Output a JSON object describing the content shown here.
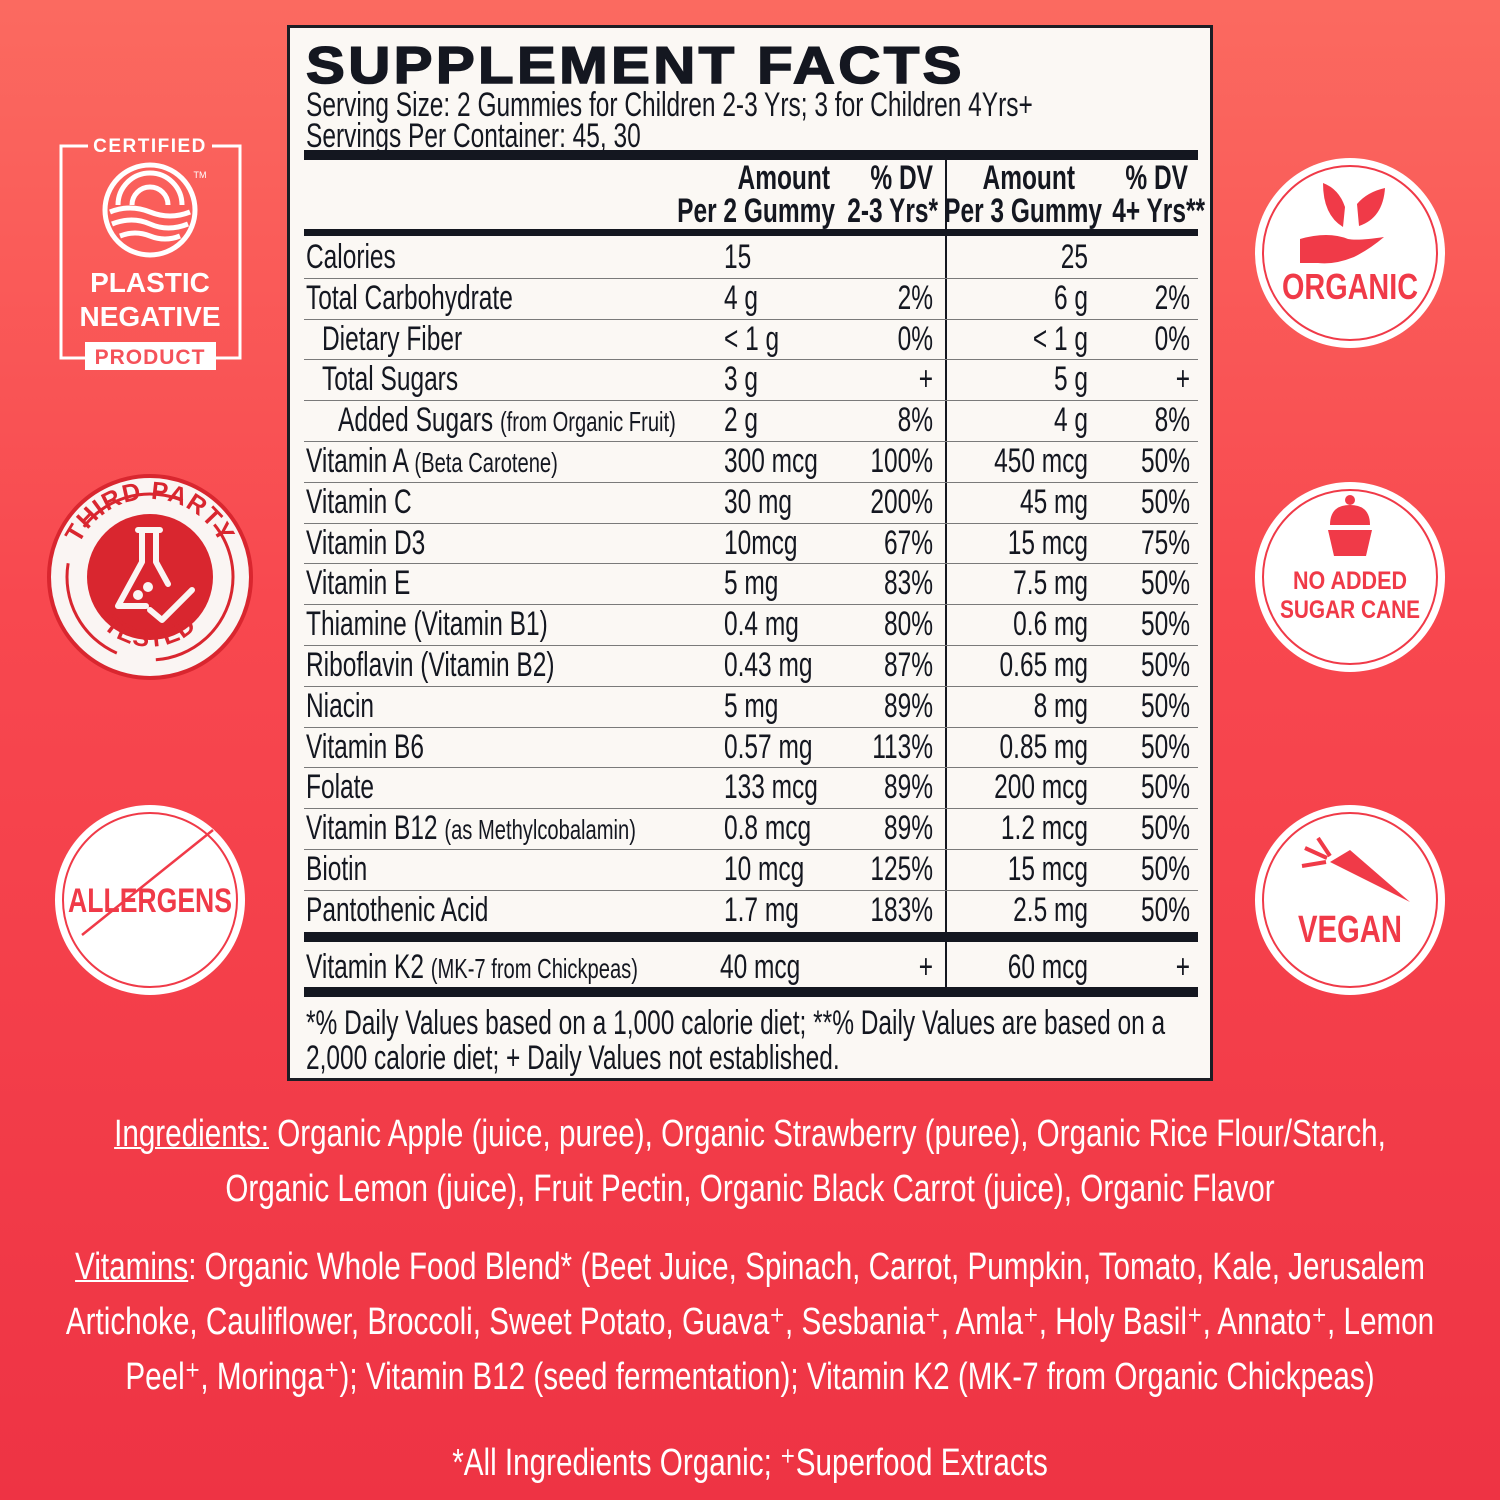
{
  "colors": {
    "accent": "#f03a48",
    "ink": "#141720",
    "panel": "#fbf8f4",
    "white": "#ffffff"
  },
  "facts": {
    "title": "SUPPLEMENT FACTS",
    "serving_size": "Serving Size: 2 Gummies for Children 2-3 Yrs; 3 for Children 4Yrs+",
    "servings_per_container": "Servings Per Container: 45, 30",
    "headers": {
      "amount1_l1": "Amount",
      "amount1_l2": "Per 2 Gummy",
      "dv1_l1": "% DV",
      "dv1_l2": "2-3 Yrs*",
      "amount2_l1": "Amount",
      "amount2_l2": "Per 3 Gummy",
      "dv2_l1": "% DV",
      "dv2_l2": "4+ Yrs**"
    },
    "rows": [
      {
        "label": "Calories",
        "note": "",
        "indent": 0,
        "amt1": "15",
        "dv1": "",
        "amt2": "25",
        "dv2": ""
      },
      {
        "label": "Total Carbohydrate",
        "note": "",
        "indent": 0,
        "amt1": "4 g",
        "dv1": "2%",
        "amt2": "6 g",
        "dv2": "2%"
      },
      {
        "label": "Dietary Fiber",
        "note": "",
        "indent": 1,
        "amt1": "< 1 g",
        "dv1": "0%",
        "amt2": "< 1 g",
        "dv2": "0%"
      },
      {
        "label": "Total Sugars",
        "note": "",
        "indent": 1,
        "amt1": "3 g",
        "dv1": "+",
        "amt2": "5 g",
        "dv2": "+"
      },
      {
        "label": "Added Sugars",
        "note": "(from Organic Fruit)",
        "indent": 2,
        "amt1": "2 g",
        "dv1": "8%",
        "amt2": "4 g",
        "dv2": "8%"
      },
      {
        "label": "Vitamin A",
        "note": "(Beta Carotene)",
        "indent": 0,
        "amt1": "300 mcg",
        "dv1": "100%",
        "amt2": "450 mcg",
        "dv2": "50%"
      },
      {
        "label": "Vitamin C",
        "note": "",
        "indent": 0,
        "amt1": "30 mg",
        "dv1": "200%",
        "amt2": "45 mg",
        "dv2": "50%"
      },
      {
        "label": "Vitamin D3",
        "note": "",
        "indent": 0,
        "amt1": " 10mcg",
        "dv1": "67%",
        "amt2": "15 mcg",
        "dv2": "75%"
      },
      {
        "label": "Vitamin E",
        "note": "",
        "indent": 0,
        "amt1": "5 mg",
        "dv1": "83%",
        "amt2": "7.5 mg",
        "dv2": "50%"
      },
      {
        "label": "Thiamine (Vitamin B1)",
        "note": "",
        "indent": 0,
        "amt1": "0.4 mg",
        "dv1": "80%",
        "amt2": "0.6 mg",
        "dv2": "50%"
      },
      {
        "label": "Riboflavin (Vitamin B2)",
        "note": "",
        "indent": 0,
        "amt1": "0.43 mg",
        "dv1": "87%",
        "amt2": "0.65 mg",
        "dv2": "50%"
      },
      {
        "label": "Niacin",
        "note": "",
        "indent": 0,
        "amt1": "5 mg",
        "dv1": "89%",
        "amt2": "8 mg",
        "dv2": "50%"
      },
      {
        "label": "Vitamin B6",
        "note": "",
        "indent": 0,
        "amt1": "0.57 mg",
        "dv1": "113%",
        "amt2": "0.85 mg",
        "dv2": "50%"
      },
      {
        "label": "Folate",
        "note": "",
        "indent": 0,
        "amt1": "133 mcg",
        "dv1": "89%",
        "amt2": "200 mcg",
        "dv2": "50%"
      },
      {
        "label": "Vitamin B12",
        "note": "(as Methylcobalamin)",
        "indent": 0,
        "amt1": "0.8 mcg",
        "dv1": "89%",
        "amt2": "1.2 mcg",
        "dv2": "50%"
      },
      {
        "label": "Biotin",
        "note": "",
        "indent": 0,
        "amt1": "10 mcg",
        "dv1": "125%",
        "amt2": "15 mcg",
        "dv2": "50%"
      },
      {
        "label": "Pantothenic Acid",
        "note": "",
        "indent": 0,
        "amt1": "1.7 mg",
        "dv1": "183%",
        "amt2": "2.5 mg",
        "dv2": "50%"
      }
    ],
    "k2": {
      "label": "Vitamin K2",
      "note": "(MK-7 from Chickpeas)",
      "amt1": "40 mcg",
      "dv1": "+",
      "amt2": "60 mcg",
      "dv2": "+"
    },
    "footnote_l1": "*% Daily Values based on a 1,000 calorie diet; **% Daily Values are based on a",
    "footnote_l2": "2,000 calorie diet; + Daily Values not established."
  },
  "badges": {
    "certified": "CERTIFIED",
    "tm": "TM",
    "plastic": "PLASTIC",
    "negative": "NEGATIVE",
    "product": "PRODUCT",
    "third_party": "THIRD PARTY",
    "tested": "TESTED",
    "allergens": "ALLERGENS",
    "organic": "ORGANIC",
    "no_added_l1": "NO ADDED",
    "no_added_l2": "SUGAR CANE",
    "vegan": "VEGAN"
  },
  "ingredients": {
    "label": "Ingredients:",
    "l1": " Organic Apple (juice, puree), Organic Strawberry (puree), Organic Rice Flour/Starch,",
    "l2": "Organic Lemon (juice), Fruit Pectin, Organic Black Carrot (juice), Organic Flavor"
  },
  "vitamins": {
    "label": "Vitamins",
    "l1": ": Organic Whole Food Blend* (Beet Juice, Spinach, Carrot, Pumpkin, Tomato, Kale, Jerusalem",
    "l2": "Artichoke, Cauliflower, Broccoli, Sweet Potato, Guava⁺, Sesbania⁺, Amla⁺, Holy Basil⁺, Annato⁺, Lemon",
    "l3": "Peel⁺, Moringa⁺); Vitamin B12 (seed fermentation); Vitamin K2 (MK-7 from Organic Chickpeas)"
  },
  "footer_note": "*All Ingredients Organic; ⁺Superfood Extracts"
}
